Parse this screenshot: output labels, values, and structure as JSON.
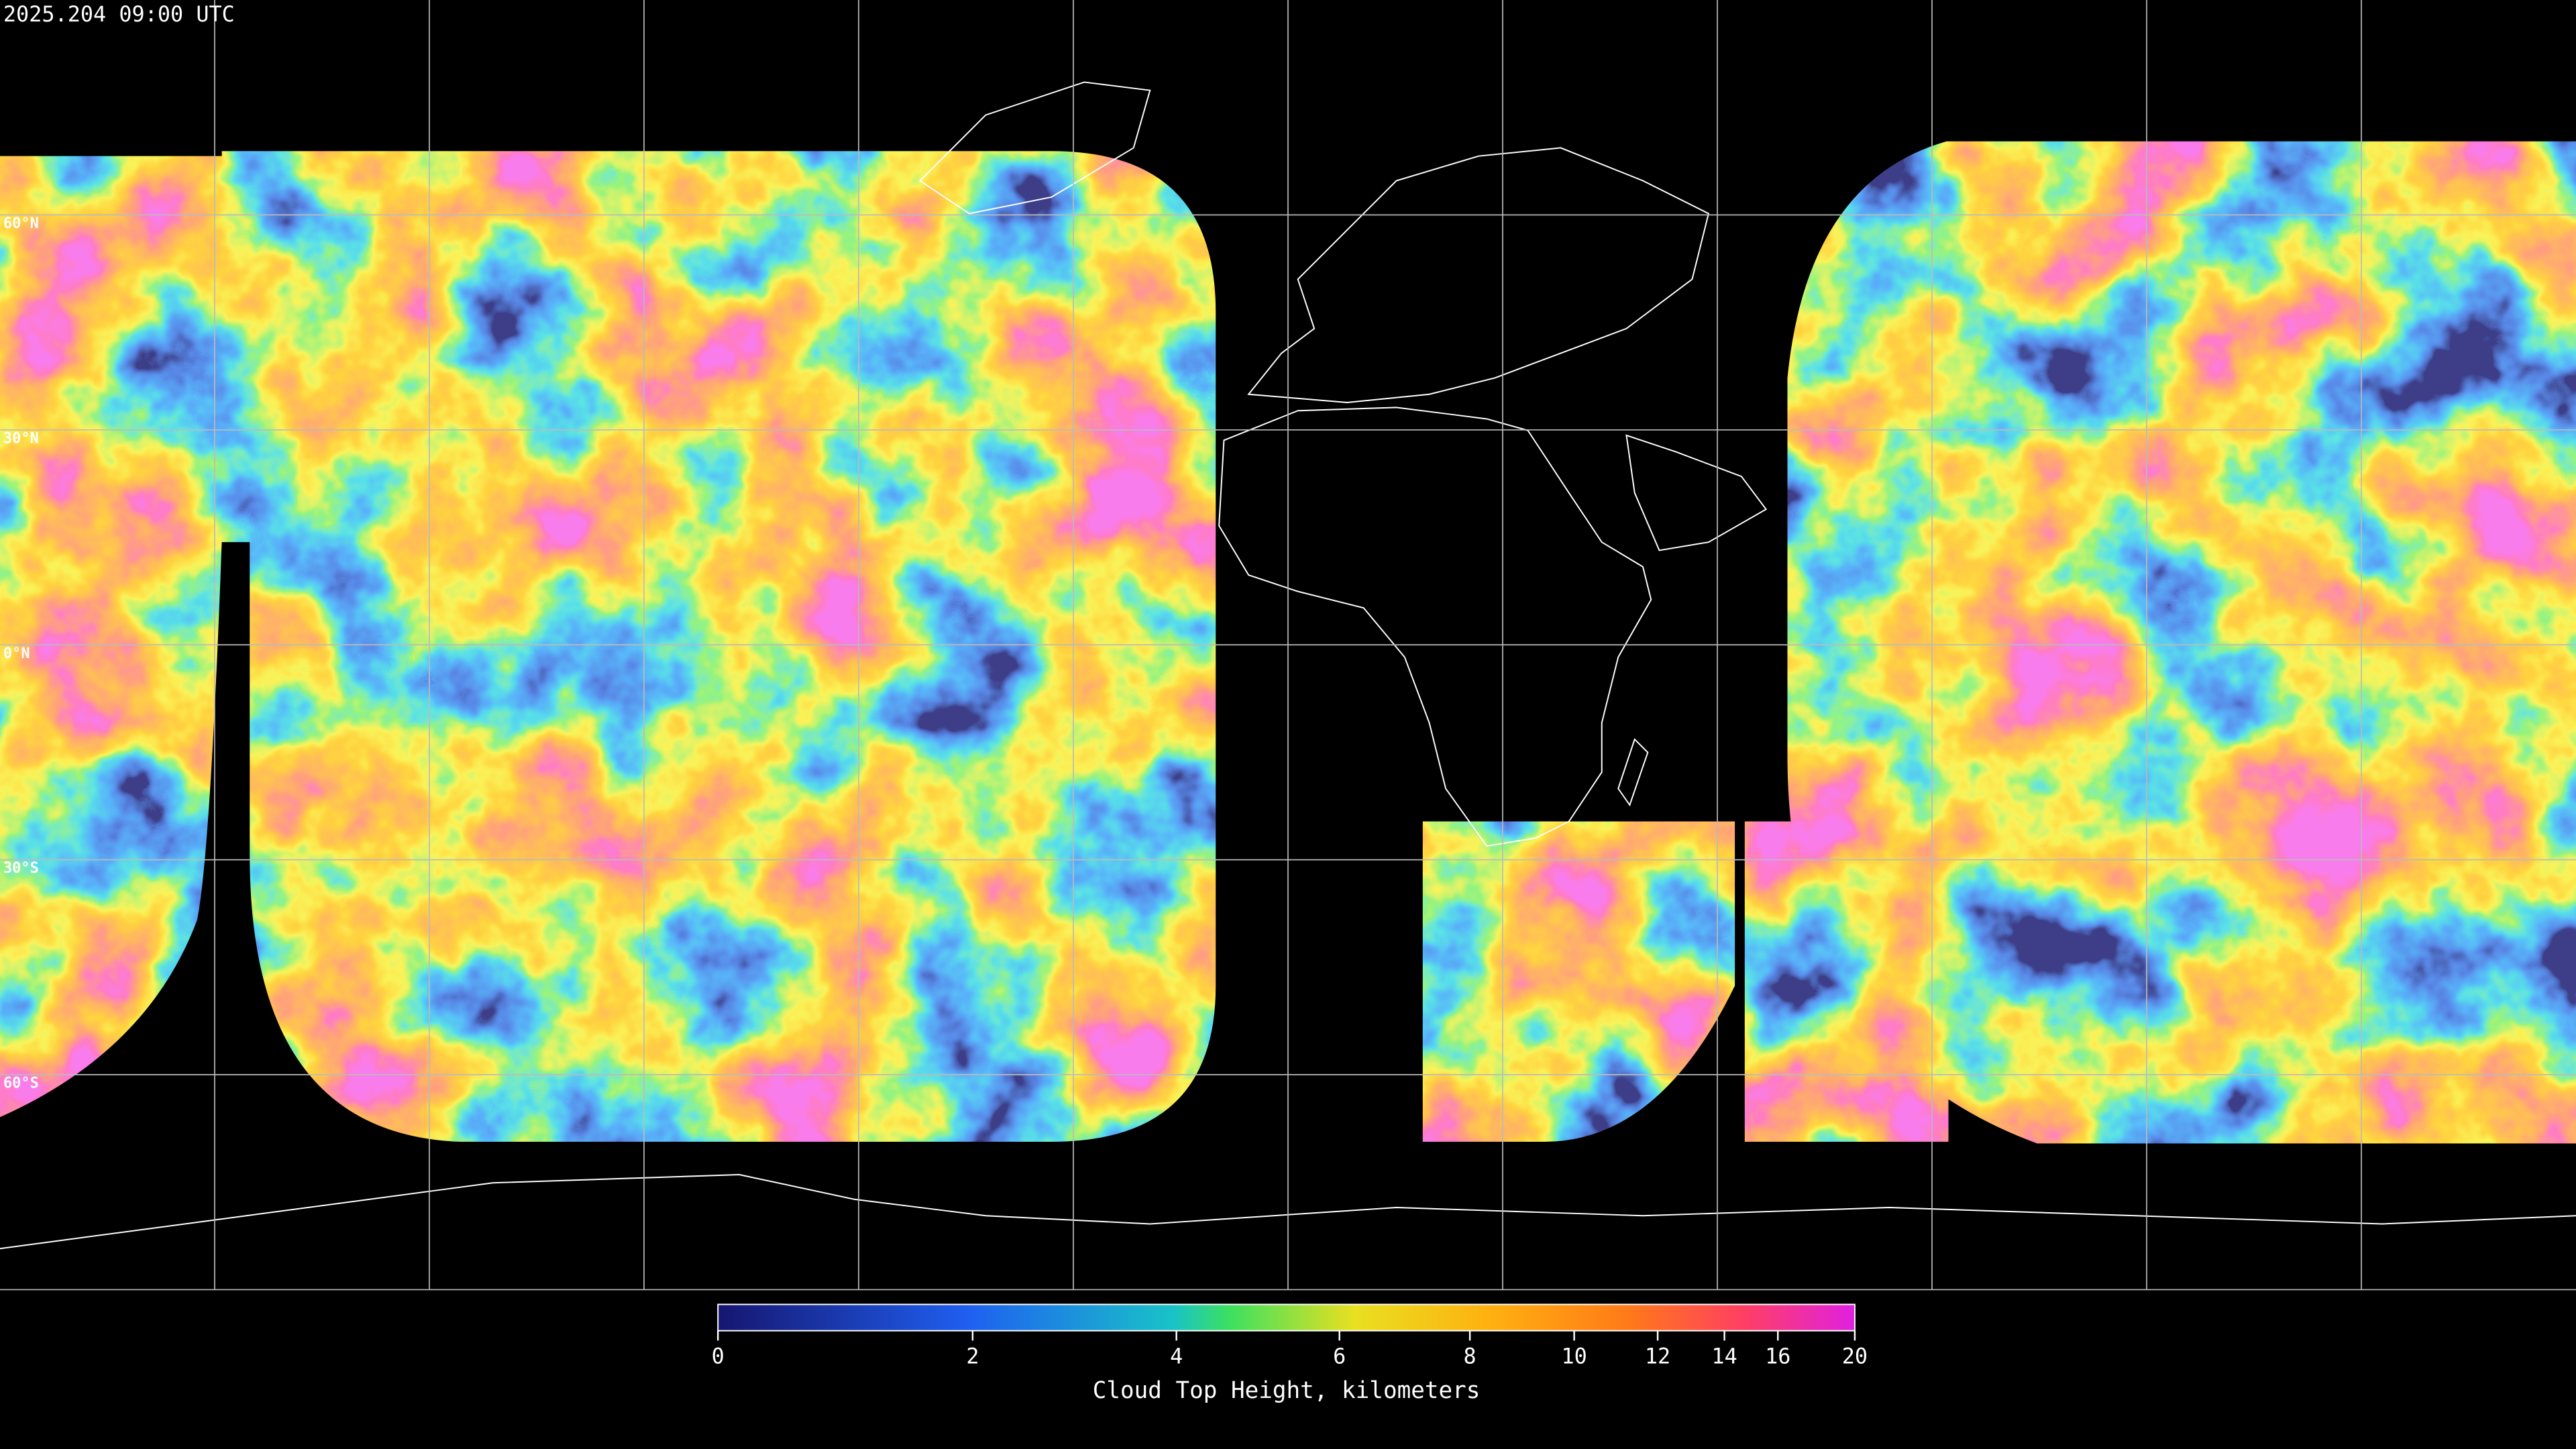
{
  "header": {
    "timestamp": "2025.204 09:00 UTC"
  },
  "map": {
    "latitude_labels": [
      "60°N",
      "30°N",
      "0°N",
      "30°S",
      "60°S"
    ]
  },
  "colorbar": {
    "ticks": [
      0,
      2,
      4,
      6,
      8,
      10,
      12,
      14,
      16,
      20
    ],
    "label": "Cloud Top Height, kilometers"
  }
}
